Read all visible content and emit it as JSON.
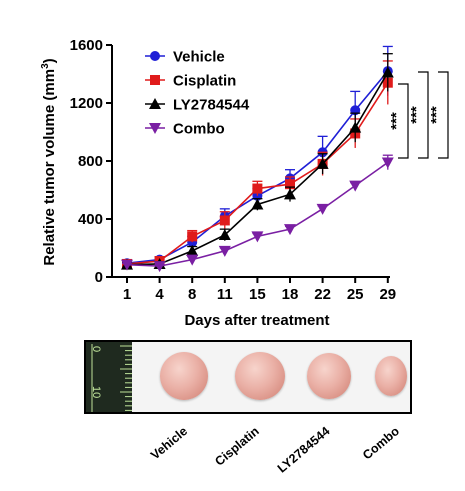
{
  "chart_data": {
    "type": "line",
    "title": "",
    "xlabel": "Days after treatment",
    "ylabel": "Relative tumor volume (mm",
    "ylabel_sup": "3",
    "ylabel_close": ")",
    "categories": [
      "1",
      "4",
      "8",
      "11",
      "15",
      "18",
      "22",
      "25",
      "29"
    ],
    "ylim": [
      0,
      1600
    ],
    "yticks": [
      "0",
      "400",
      "800",
      "1200",
      "1600"
    ],
    "grid": false,
    "legend_position": "top-left",
    "series": [
      {
        "name": "Vehicle",
        "color": "#1f1fd6",
        "marker": "circle",
        "values": [
          95,
          120,
          240,
          420,
          560,
          680,
          860,
          1150,
          1420
        ],
        "errors": [
          15,
          20,
          40,
          50,
          50,
          60,
          110,
          130,
          170
        ]
      },
      {
        "name": "Cisplatin",
        "color": "#e01b1b",
        "marker": "square",
        "values": [
          90,
          110,
          280,
          390,
          610,
          640,
          780,
          990,
          1340
        ],
        "errors": [
          15,
          20,
          40,
          60,
          50,
          50,
          80,
          100,
          150
        ]
      },
      {
        "name": "LY2784544",
        "color": "#000000",
        "marker": "triangle-up",
        "values": [
          85,
          90,
          180,
          290,
          500,
          570,
          780,
          1030,
          1410
        ],
        "errors": [
          15,
          15,
          30,
          40,
          40,
          50,
          70,
          100,
          130
        ]
      },
      {
        "name": "Combo",
        "color": "#7a1fa3",
        "marker": "triangle-down",
        "values": [
          85,
          75,
          120,
          180,
          280,
          330,
          470,
          630,
          790
        ],
        "errors": [
          10,
          10,
          20,
          20,
          20,
          20,
          20,
          20,
          50
        ]
      }
    ],
    "annotations": [
      "***",
      "***",
      "***"
    ]
  },
  "photo": {
    "ruler_labels": [
      "0",
      "10"
    ],
    "labels": [
      "Vehicle",
      "Cisplatin",
      "LY2784544",
      "Combo"
    ]
  }
}
